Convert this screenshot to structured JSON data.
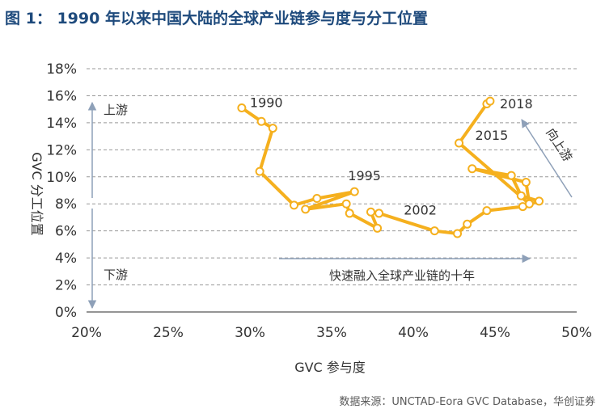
{
  "title": "图 1： 1990 年以来中国大陆的全球产业链参与度与分工位置",
  "source": "数据来源：UNCTAD-Eora GVC Database，华创证券",
  "colors": {
    "line": "#f5b01e",
    "marker_fill": "#ffffff",
    "grid": "#999999",
    "arrow": "#8ea0b8",
    "text": "#333333",
    "title": "#1e4a7c"
  },
  "chart_data": {
    "type": "line",
    "title": "",
    "xlabel": "GVC 参与度",
    "ylabel": "GVC 分工位置",
    "xlim": [
      20,
      50
    ],
    "ylim": [
      0,
      18
    ],
    "x_ticks": [
      "20%",
      "25%",
      "30%",
      "35%",
      "40%",
      "45%",
      "50%"
    ],
    "y_ticks": [
      "0%",
      "2%",
      "4%",
      "6%",
      "8%",
      "10%",
      "12%",
      "14%",
      "16%",
      "18%"
    ],
    "grid": "horizontal dashed",
    "points": [
      {
        "x": 29.5,
        "y": 15.1
      },
      {
        "x": 30.7,
        "y": 14.1
      },
      {
        "x": 31.4,
        "y": 13.6
      },
      {
        "x": 30.6,
        "y": 10.4
      },
      {
        "x": 32.7,
        "y": 7.9
      },
      {
        "x": 34.1,
        "y": 8.4
      },
      {
        "x": 36.4,
        "y": 8.9
      },
      {
        "x": 33.4,
        "y": 7.6
      },
      {
        "x": 35.9,
        "y": 8.0
      },
      {
        "x": 36.1,
        "y": 7.3
      },
      {
        "x": 37.8,
        "y": 6.2
      },
      {
        "x": 37.4,
        "y": 7.4
      },
      {
        "x": 37.9,
        "y": 7.3
      },
      {
        "x": 41.3,
        "y": 6.0
      },
      {
        "x": 42.7,
        "y": 5.8
      },
      {
        "x": 43.3,
        "y": 6.5
      },
      {
        "x": 44.5,
        "y": 7.5
      },
      {
        "x": 46.7,
        "y": 7.8
      },
      {
        "x": 47.7,
        "y": 8.2
      },
      {
        "x": 46.6,
        "y": 8.6
      },
      {
        "x": 46.0,
        "y": 10.1
      },
      {
        "x": 43.6,
        "y": 10.6
      },
      {
        "x": 46.9,
        "y": 9.6
      },
      {
        "x": 47.1,
        "y": 8.0
      },
      {
        "x": 42.8,
        "y": 12.5
      },
      {
        "x": 44.5,
        "y": 15.4
      },
      {
        "x": 44.7,
        "y": 15.6
      }
    ],
    "point_labels": [
      {
        "text": "1990",
        "index": 0
      },
      {
        "text": "1995",
        "index": 6
      },
      {
        "text": "2002",
        "index": 13
      },
      {
        "text": "2015",
        "index": 24
      },
      {
        "text": "2018",
        "index": 26
      }
    ],
    "annotations": {
      "upstream": "上游",
      "downstream": "下游",
      "integration": "快速融入全球产业链的十年",
      "moving_up": "向上游"
    }
  }
}
